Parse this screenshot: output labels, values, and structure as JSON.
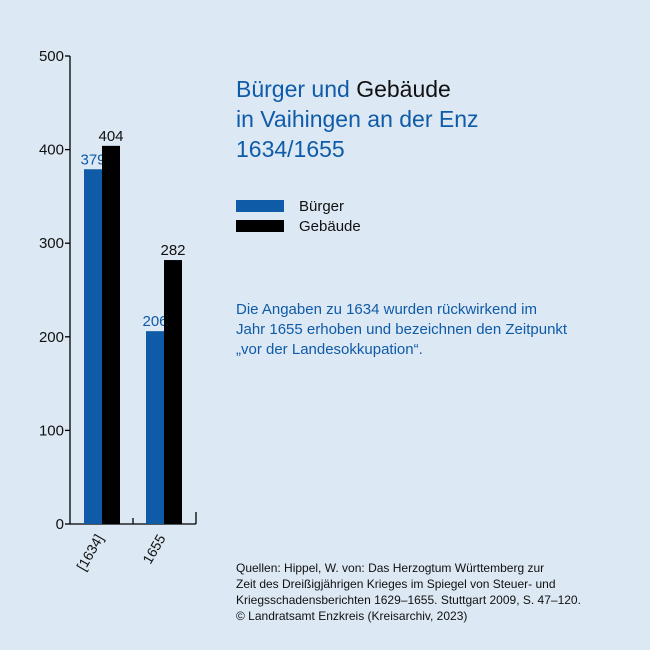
{
  "colors": {
    "background": "#dce8f3",
    "burger": "#0f5ba8",
    "gebaeude": "#000000"
  },
  "title": {
    "part1": "Bürger und",
    "part2": "Gebäude",
    "line2": "in Vaihingen an der Enz",
    "line3": "1634/1655"
  },
  "note": [
    "Die Angaben zu 1634 wurden rückwirkend im",
    "Jahr 1655 erhoben und bezeichnen den Zeitpunkt",
    "„vor der Landesokkupation“."
  ],
  "source": [
    "Quellen: Hippel, W. von: Das Herzogtum Württemberg zur",
    "Zeit des Dreißigjährigen Krieges im Spiegel von Steuer- und",
    "Kriegsschadensberichten 1629–1655. Stuttgart 2009, S. 47–120.",
    "© Landratsamt Enzkreis (Kreisarchiv, 2023)"
  ],
  "chart_data": {
    "type": "bar",
    "categories": [
      "[1634]",
      "1655"
    ],
    "series": [
      {
        "name": "Bürger",
        "values": [
          379,
          206
        ],
        "color": "#0f5ba8",
        "label_color": "#0f5ba8"
      },
      {
        "name": "Gebäude",
        "values": [
          404,
          282
        ],
        "color": "#000000",
        "label_color": "#111111"
      }
    ],
    "yticks": [
      0,
      100,
      200,
      300,
      400,
      500
    ],
    "ylim": [
      0,
      500
    ],
    "grid": false,
    "legend_position": "right"
  }
}
